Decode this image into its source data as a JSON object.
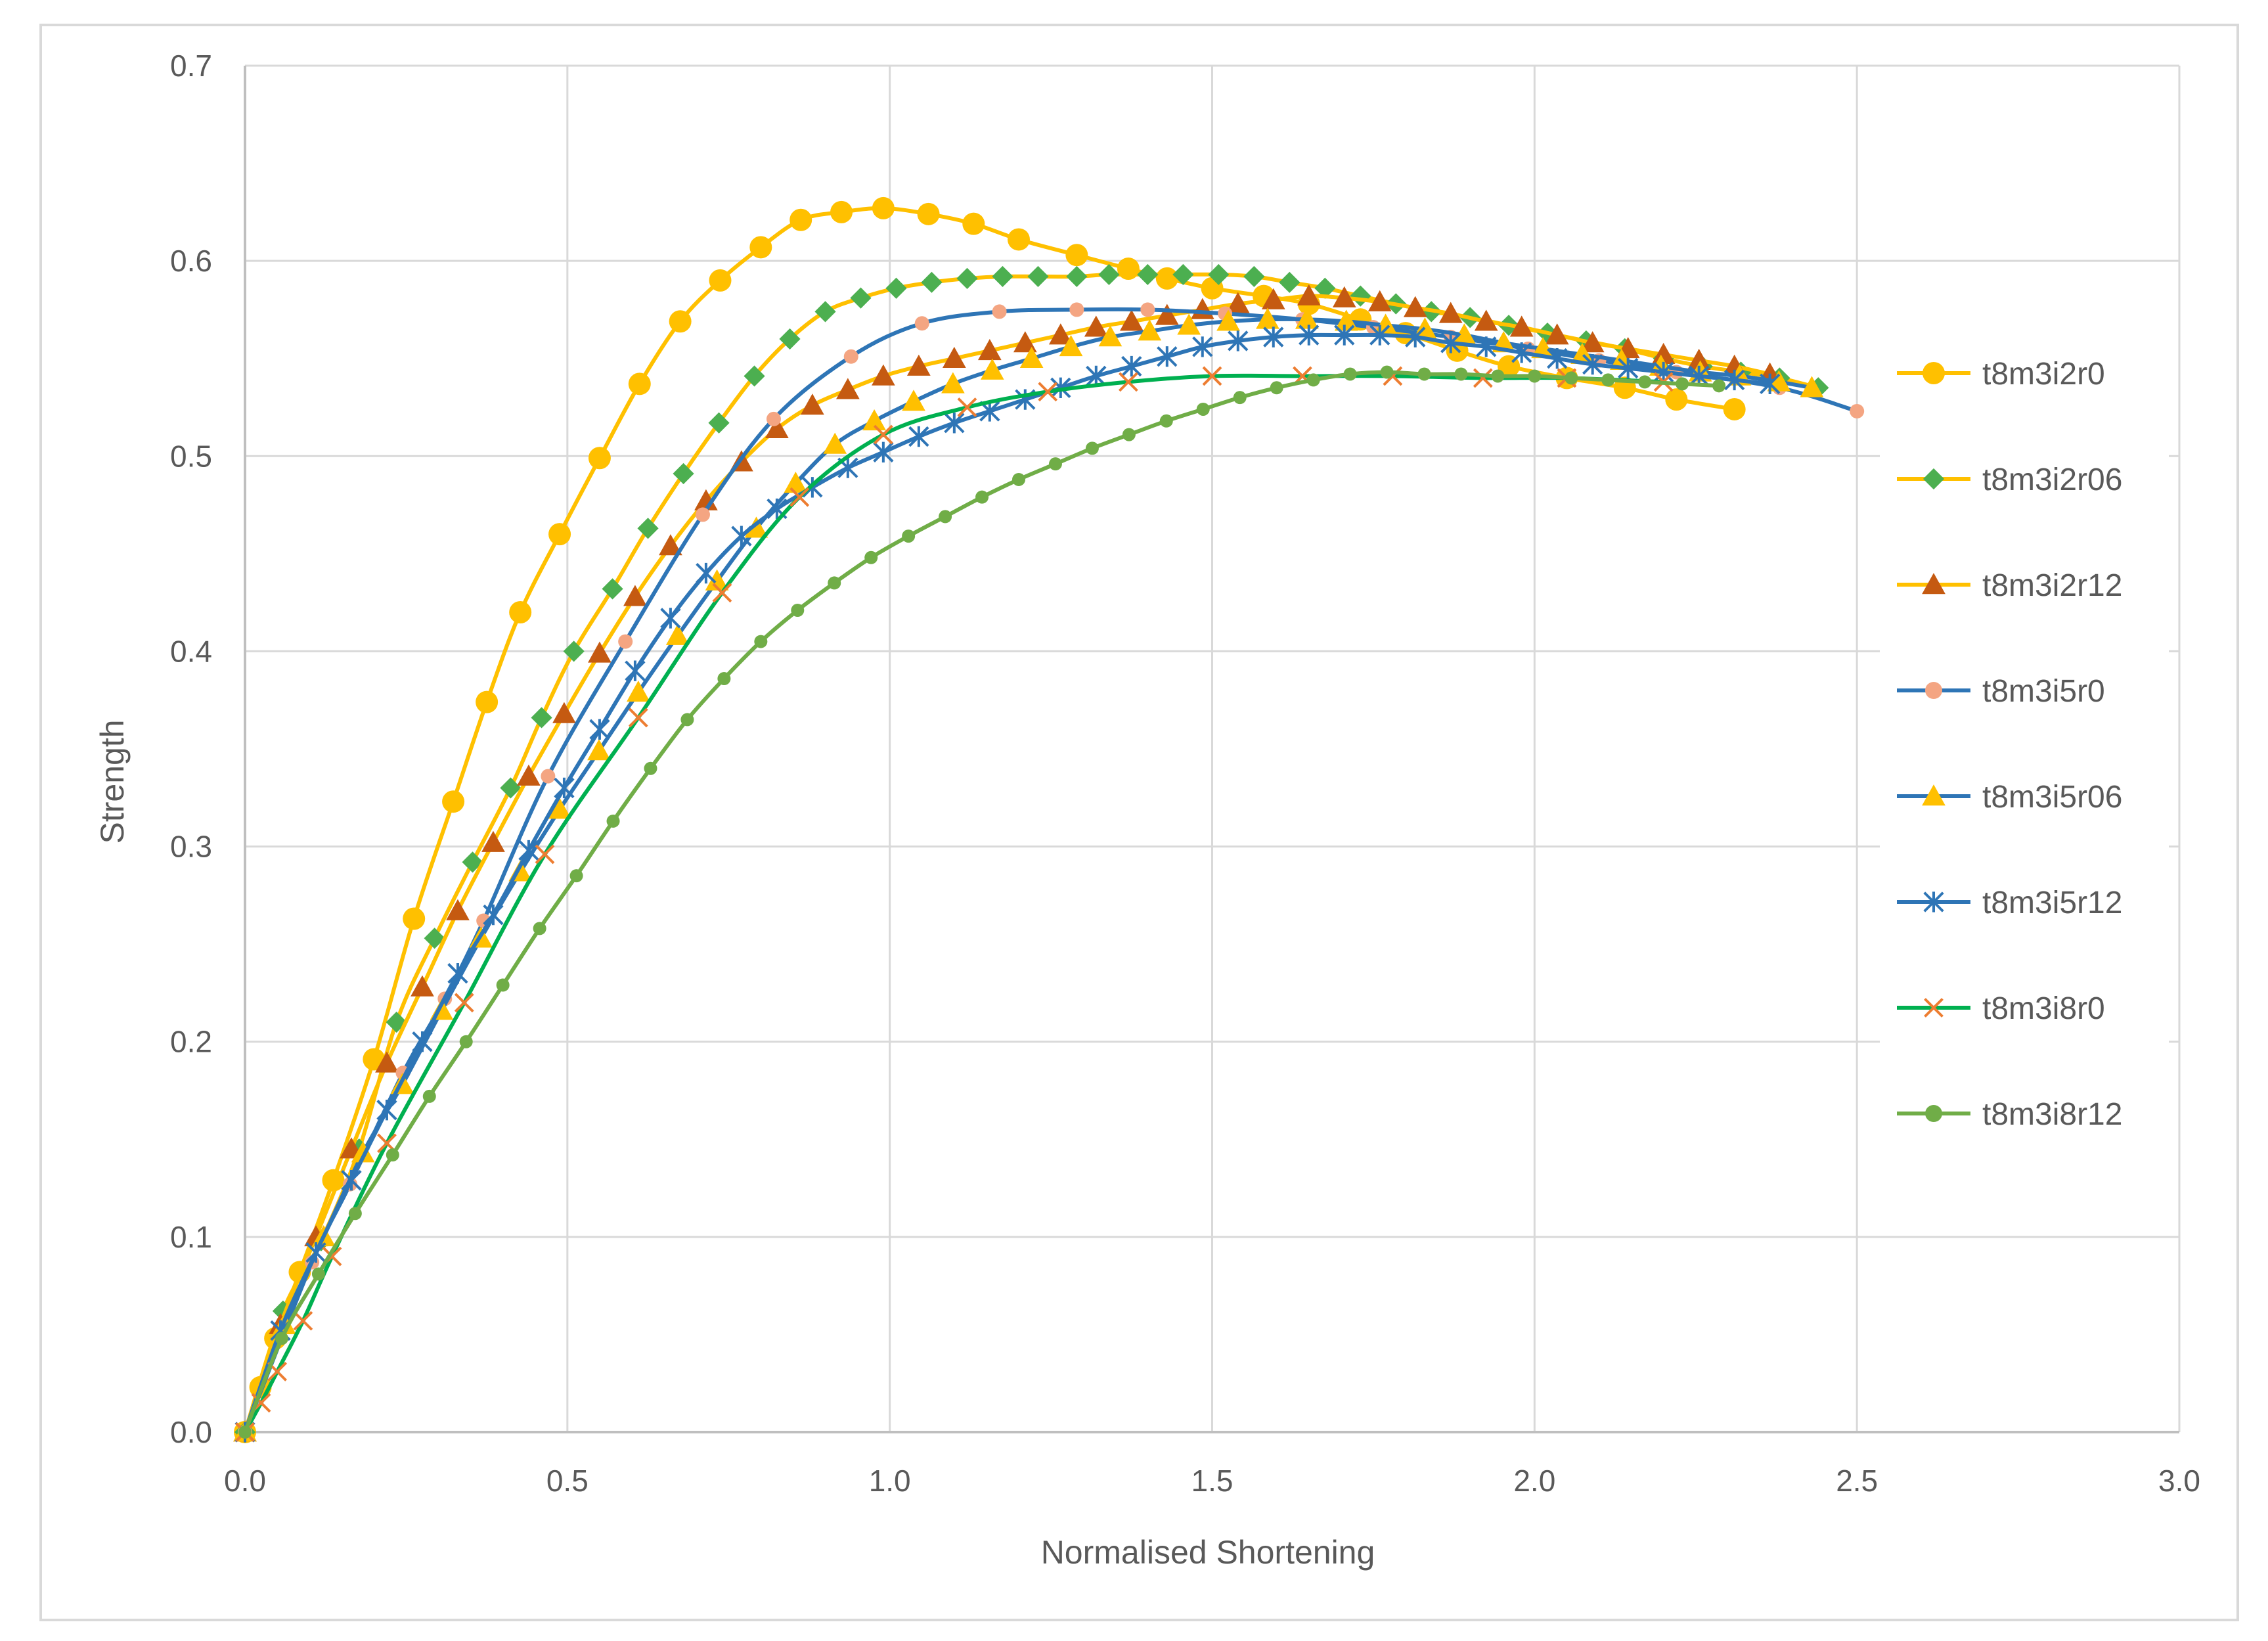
{
  "chart_data": {
    "type": "line",
    "title": "",
    "xlabel": "Normalised Shortening",
    "ylabel": "Strength",
    "xlim": [
      0,
      3
    ],
    "ylim": [
      0,
      0.7
    ],
    "x_ticks": [
      "0.0",
      "0.5",
      "1.0",
      "1.5",
      "2.0",
      "2.5",
      "3.0"
    ],
    "y_ticks": [
      "0.0",
      "0.1",
      "0.2",
      "0.3",
      "0.4",
      "0.5",
      "0.6",
      "0.7"
    ],
    "grid": true,
    "legend_position": "right",
    "series": [
      {
        "name": "t8m3i2r0",
        "color": "#FFC000",
        "marker": "circle",
        "marker_size": 17,
        "x": [
          0,
          0.024,
          0.047,
          0.085,
          0.137,
          0.2,
          0.262,
          0.323,
          0.375,
          0.427,
          0.488,
          0.55,
          0.612,
          0.675,
          0.737,
          0.8,
          0.862,
          0.925,
          0.99,
          1.06,
          1.13,
          1.2,
          1.29,
          1.37,
          1.43,
          1.5,
          1.58,
          1.65,
          1.73,
          1.8,
          1.88,
          1.96,
          2.05,
          2.14,
          2.22,
          2.31
        ],
        "y": [
          0,
          0.023,
          0.048,
          0.082,
          0.129,
          0.191,
          0.263,
          0.323,
          0.374,
          0.42,
          0.46,
          0.499,
          0.537,
          0.569,
          0.59,
          0.607,
          0.621,
          0.625,
          0.627,
          0.624,
          0.619,
          0.611,
          0.603,
          0.596,
          0.591,
          0.586,
          0.582,
          0.578,
          0.57,
          0.563,
          0.554,
          0.546,
          0.54,
          0.535,
          0.529,
          0.524
        ]
      },
      {
        "name": "t8m3i2r06",
        "color": "#4CAF50",
        "line_color": "#FFC000",
        "marker": "diamond",
        "marker_size": 14,
        "x": [
          0,
          0.059,
          0.118,
          0.177,
          0.235,
          0.294,
          0.353,
          0.412,
          0.46,
          0.51,
          0.57,
          0.625,
          0.68,
          0.735,
          0.79,
          0.845,
          0.9,
          0.955,
          1.01,
          1.065,
          1.12,
          1.175,
          1.23,
          1.29,
          1.34,
          1.4,
          1.455,
          1.51,
          1.565,
          1.62,
          1.675,
          1.73,
          1.785,
          1.84,
          1.9,
          1.96,
          2.02,
          2.08,
          2.14,
          2.2,
          2.26,
          2.32,
          2.38,
          2.44
        ],
        "y": [
          0,
          0.062,
          0.098,
          0.145,
          0.21,
          0.253,
          0.292,
          0.33,
          0.366,
          0.4,
          0.432,
          0.463,
          0.491,
          0.517,
          0.541,
          0.56,
          0.574,
          0.581,
          0.586,
          0.589,
          0.591,
          0.592,
          0.592,
          0.592,
          0.593,
          0.593,
          0.593,
          0.593,
          0.592,
          0.589,
          0.586,
          0.582,
          0.578,
          0.574,
          0.571,
          0.567,
          0.563,
          0.559,
          0.555,
          0.55,
          0.546,
          0.543,
          0.54,
          0.535
        ]
      },
      {
        "name": "t8m3i2r12",
        "color": "#C55A11",
        "line_color": "#FFC000",
        "marker": "triangle",
        "marker_size": 17,
        "x": [
          0,
          0.055,
          0.11,
          0.165,
          0.22,
          0.275,
          0.33,
          0.385,
          0.44,
          0.495,
          0.55,
          0.605,
          0.66,
          0.715,
          0.77,
          0.825,
          0.88,
          0.935,
          0.99,
          1.045,
          1.1,
          1.155,
          1.21,
          1.265,
          1.32,
          1.375,
          1.43,
          1.485,
          1.54,
          1.595,
          1.65,
          1.705,
          1.76,
          1.815,
          1.87,
          1.925,
          1.98,
          2.035,
          2.09,
          2.145,
          2.2,
          2.255,
          2.31,
          2.365
        ],
        "y": [
          0,
          0.055,
          0.1,
          0.145,
          0.189,
          0.228,
          0.267,
          0.302,
          0.336,
          0.368,
          0.399,
          0.428,
          0.454,
          0.477,
          0.497,
          0.514,
          0.526,
          0.534,
          0.541,
          0.546,
          0.55,
          0.554,
          0.558,
          0.562,
          0.566,
          0.569,
          0.572,
          0.575,
          0.578,
          0.58,
          0.582,
          0.581,
          0.579,
          0.576,
          0.573,
          0.569,
          0.566,
          0.562,
          0.558,
          0.555,
          0.552,
          0.549,
          0.546,
          0.542
        ]
      },
      {
        "name": "t8m3i5r0",
        "color": "#F4A582",
        "line_color": "#2E75B6",
        "marker": "circle",
        "marker_size": 11,
        "x": [
          0,
          0.104,
          0.163,
          0.245,
          0.31,
          0.37,
          0.47,
          0.59,
          0.71,
          0.82,
          0.94,
          1.05,
          1.17,
          1.29,
          1.4,
          1.52,
          1.64,
          1.75,
          1.87,
          1.99,
          2.1,
          2.22,
          2.38,
          2.5
        ],
        "y": [
          0,
          0.087,
          0.127,
          0.184,
          0.222,
          0.262,
          0.336,
          0.405,
          0.47,
          0.519,
          0.551,
          0.568,
          0.574,
          0.575,
          0.575,
          0.573,
          0.57,
          0.566,
          0.561,
          0.555,
          0.549,
          0.543,
          0.535,
          0.523
        ]
      },
      {
        "name": "t8m3i5r06",
        "color": "#FFC000",
        "line_color": "#2E75B6",
        "marker": "triangle",
        "marker_size": 17,
        "x": [
          0,
          0.061,
          0.122,
          0.183,
          0.244,
          0.305,
          0.366,
          0.427,
          0.488,
          0.549,
          0.61,
          0.671,
          0.732,
          0.793,
          0.854,
          0.915,
          0.976,
          1.037,
          1.098,
          1.159,
          1.22,
          1.281,
          1.342,
          1.403,
          1.464,
          1.525,
          1.586,
          1.647,
          1.708,
          1.769,
          1.83,
          1.891,
          1.952,
          2.013,
          2.074,
          2.135,
          2.196,
          2.257,
          2.318,
          2.379,
          2.43
        ],
        "y": [
          0,
          0.055,
          0.1,
          0.143,
          0.178,
          0.216,
          0.253,
          0.287,
          0.319,
          0.349,
          0.379,
          0.408,
          0.436,
          0.463,
          0.486,
          0.506,
          0.518,
          0.528,
          0.537,
          0.544,
          0.55,
          0.556,
          0.561,
          0.564,
          0.567,
          0.569,
          0.57,
          0.57,
          0.569,
          0.567,
          0.565,
          0.562,
          0.558,
          0.555,
          0.552,
          0.549,
          0.546,
          0.543,
          0.541,
          0.538,
          0.535
        ]
      },
      {
        "name": "t8m3i5r12",
        "color": "#2E75B6",
        "marker": "asterisk",
        "marker_size": 15,
        "x": [
          0,
          0.055,
          0.11,
          0.165,
          0.22,
          0.275,
          0.33,
          0.385,
          0.44,
          0.495,
          0.55,
          0.605,
          0.66,
          0.715,
          0.77,
          0.825,
          0.88,
          0.935,
          0.99,
          1.045,
          1.1,
          1.155,
          1.21,
          1.265,
          1.32,
          1.375,
          1.43,
          1.485,
          1.54,
          1.595,
          1.65,
          1.705,
          1.76,
          1.815,
          1.87,
          1.925,
          1.98,
          2.035,
          2.09,
          2.145,
          2.2,
          2.255,
          2.31,
          2.365
        ],
        "y": [
          0,
          0.052,
          0.092,
          0.129,
          0.165,
          0.2,
          0.235,
          0.265,
          0.298,
          0.33,
          0.36,
          0.39,
          0.417,
          0.44,
          0.459,
          0.473,
          0.484,
          0.494,
          0.502,
          0.51,
          0.517,
          0.523,
          0.529,
          0.535,
          0.541,
          0.546,
          0.551,
          0.556,
          0.559,
          0.561,
          0.562,
          0.562,
          0.562,
          0.561,
          0.558,
          0.556,
          0.553,
          0.55,
          0.547,
          0.545,
          0.543,
          0.541,
          0.539,
          0.537
        ]
      },
      {
        "name": "t8m3i8r0",
        "color": "#ED7D31",
        "line_color": "#00B050",
        "marker": "x",
        "marker_size": 15,
        "x": [
          0,
          0.025,
          0.05,
          0.09,
          0.135,
          0.22,
          0.34,
          0.465,
          0.61,
          0.74,
          0.86,
          0.99,
          1.12,
          1.245,
          1.37,
          1.5,
          1.64,
          1.78,
          1.92,
          2.05,
          2.2
        ],
        "y": [
          0,
          0.015,
          0.031,
          0.057,
          0.09,
          0.148,
          0.22,
          0.296,
          0.366,
          0.43,
          0.479,
          0.511,
          0.525,
          0.533,
          0.538,
          0.541,
          0.541,
          0.541,
          0.54,
          0.54,
          0.538
        ]
      },
      {
        "name": "t8m3i8r12",
        "color": "#70AD47",
        "marker": "circle",
        "marker_size": 10,
        "x": [
          0,
          0.057,
          0.114,
          0.171,
          0.229,
          0.286,
          0.343,
          0.4,
          0.457,
          0.514,
          0.571,
          0.629,
          0.686,
          0.743,
          0.8,
          0.857,
          0.914,
          0.971,
          1.029,
          1.086,
          1.143,
          1.2,
          1.257,
          1.314,
          1.371,
          1.429,
          1.486,
          1.543,
          1.6,
          1.657,
          1.714,
          1.771,
          1.829,
          1.886,
          1.943,
          2,
          2.057,
          2.114,
          2.171,
          2.229,
          2.286
        ],
        "y": [
          0,
          0.048,
          0.081,
          0.112,
          0.142,
          0.172,
          0.2,
          0.229,
          0.258,
          0.285,
          0.313,
          0.34,
          0.365,
          0.386,
          0.405,
          0.421,
          0.435,
          0.448,
          0.459,
          0.469,
          0.479,
          0.488,
          0.496,
          0.504,
          0.511,
          0.518,
          0.524,
          0.53,
          0.535,
          0.539,
          0.542,
          0.543,
          0.542,
          0.542,
          0.541,
          0.541,
          0.54,
          0.539,
          0.538,
          0.537,
          0.536
        ]
      }
    ]
  }
}
